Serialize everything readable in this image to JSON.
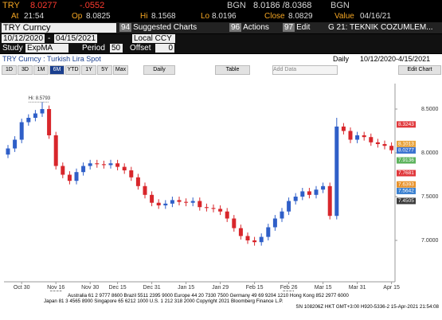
{
  "header": {
    "ticker": "TRY",
    "last": "8.0277",
    "change": "-.0552",
    "bid_src": "BGN",
    "bidask": "8.0186 /8.0368",
    "ask_src": "BGN",
    "at_label": "At",
    "at": "21:54",
    "op_label": "Op",
    "op": "8.0825",
    "hi_label": "Hi",
    "hi": "8.1568",
    "lo_label": "Lo",
    "lo": "8.0196",
    "close_label": "Close",
    "close": "8.0829",
    "value_label": "Value",
    "value": "04/16/21"
  },
  "toolbar": {
    "security": "TRY Curncy",
    "menus": [
      {
        "key": "94",
        "label": "Suggested Charts"
      },
      {
        "key": "96",
        "label": "Actions"
      },
      {
        "key": "97",
        "label": "Edit"
      }
    ],
    "page": "G 21: TEKNIK COZUMLEM...",
    "start": "10/12/2020",
    "end": "04/15/2021",
    "currency": "Local CCY",
    "study_label": "Study",
    "study": "ExpMA",
    "period_label": "Period",
    "period": "50",
    "offset_label": "Offset",
    "offset": "0"
  },
  "chart_header": {
    "title": "TRY Curncy : Turkish Lira Spot",
    "frequency": "Daily",
    "range": "10/12/2020-4/15/2021"
  },
  "ranges": [
    "1D",
    "3D",
    "1M",
    "6M",
    "YTD",
    "1Y",
    "5Y",
    "Max"
  ],
  "selected_range": "6M",
  "period_select": "Daily",
  "table_button": "Table",
  "add_data": "Add Data",
  "edit_chart": "Edit Chart",
  "chart_data": {
    "type": "candlestick",
    "categories": [
      null,
      null,
      "Oct 30",
      null,
      null,
      null,
      null,
      "Nov 16",
      null,
      null,
      null,
      null,
      "Nov 30",
      null,
      null,
      null,
      "Dec 15",
      null,
      null,
      null,
      null,
      "Dec 31",
      null,
      null,
      null,
      null,
      "Jan 15",
      null,
      null,
      null,
      null,
      "Jan 29",
      null,
      null,
      null,
      null,
      "Feb 15",
      null,
      null,
      null,
      null,
      "Feb 26",
      null,
      null,
      null,
      null,
      "Mar 15",
      null,
      null,
      null,
      null,
      "Mar 31",
      null,
      null,
      null,
      null,
      "Apr 15"
    ],
    "year_labels": [
      "2020",
      "2021"
    ],
    "open": [
      7.98,
      8.05,
      8.15,
      8.35,
      8.4,
      8.45,
      8.5,
      8.2,
      7.85,
      7.75,
      7.68,
      7.78,
      7.85,
      7.88,
      7.87,
      7.86,
      7.88,
      7.84,
      7.8,
      7.72,
      7.62,
      7.52,
      7.43,
      7.4,
      7.42,
      7.46,
      7.44,
      7.43,
      7.45,
      7.38,
      7.37,
      7.36,
      7.33,
      7.25,
      7.14,
      7.05,
      7.0,
      6.98,
      7.04,
      7.15,
      7.25,
      7.33,
      7.45,
      7.5,
      7.56,
      7.52,
      7.58,
      7.62,
      7.28,
      8.3,
      8.25,
      8.15,
      8.2,
      8.18,
      8.12,
      8.1,
      8.08
    ],
    "high": [
      8.09,
      8.19,
      8.39,
      8.44,
      8.49,
      8.58,
      8.54,
      8.24,
      7.89,
      7.79,
      7.82,
      7.89,
      7.92,
      7.92,
      7.91,
      7.92,
      7.92,
      7.88,
      7.84,
      7.76,
      7.66,
      7.56,
      7.47,
      7.46,
      7.5,
      7.5,
      7.48,
      7.49,
      7.49,
      7.42,
      7.41,
      7.4,
      7.37,
      7.29,
      7.18,
      7.09,
      7.04,
      7.08,
      7.19,
      7.29,
      7.37,
      7.49,
      7.54,
      7.6,
      7.6,
      7.62,
      7.66,
      7.66,
      8.4,
      8.34,
      8.29,
      8.24,
      8.24,
      8.22,
      8.16,
      8.14,
      8.12
    ],
    "low": [
      7.94,
      8.01,
      8.11,
      8.31,
      8.36,
      8.41,
      8.16,
      7.81,
      7.71,
      7.64,
      7.64,
      7.74,
      7.81,
      7.83,
      7.82,
      7.82,
      7.8,
      7.76,
      7.68,
      7.58,
      7.48,
      7.39,
      7.36,
      7.36,
      7.38,
      7.4,
      7.39,
      7.39,
      7.34,
      7.33,
      7.32,
      7.29,
      7.21,
      7.1,
      7.01,
      6.96,
      6.94,
      6.94,
      7.0,
      7.11,
      7.21,
      7.29,
      7.41,
      7.46,
      7.48,
      7.48,
      7.54,
      7.24,
      7.24,
      8.21,
      8.11,
      8.11,
      8.14,
      8.08,
      8.06,
      8.04,
      7.99
    ],
    "close": [
      8.05,
      8.15,
      8.35,
      8.4,
      8.45,
      8.5,
      8.2,
      7.85,
      7.75,
      7.68,
      7.78,
      7.85,
      7.88,
      7.87,
      7.86,
      7.88,
      7.84,
      7.8,
      7.72,
      7.62,
      7.52,
      7.43,
      7.4,
      7.42,
      7.46,
      7.44,
      7.43,
      7.45,
      7.38,
      7.37,
      7.36,
      7.33,
      7.25,
      7.14,
      7.05,
      7.0,
      6.98,
      7.04,
      7.15,
      7.25,
      7.33,
      7.45,
      7.5,
      7.56,
      7.52,
      7.58,
      7.62,
      7.28,
      8.3,
      8.25,
      8.15,
      8.2,
      8.18,
      8.12,
      8.1,
      8.08,
      8.03
    ],
    "up_color": "#2f5fc8",
    "down_color": "#d8262b",
    "high_annotation": {
      "label": "Hi: 8.5793",
      "value": 8.5793
    },
    "ylim": [
      6.6,
      8.7
    ],
    "yticks": [
      {
        "value": 7,
        "label": "7.0000"
      },
      {
        "value": 7.5,
        "label": "7.5000"
      },
      {
        "value": 8,
        "label": "8.0000"
      },
      {
        "value": 8.5,
        "label": "8.5000"
      }
    ],
    "grid": false,
    "price_labels": [
      {
        "value": 8.3243,
        "color": "#e0383c"
      },
      {
        "value": 8.1013,
        "color": "#e8a23a"
      },
      {
        "value": 8.0277,
        "color": "#3a72d0"
      },
      {
        "value": 7.9136,
        "color": "#5db35d"
      },
      {
        "value": 7.7681,
        "color": "#e0383c"
      },
      {
        "value": 7.6393,
        "color": "#e8922a"
      },
      {
        "value": 7.5642,
        "color": "#3a80d0"
      },
      {
        "value": 7.4505,
        "color": "#3c3c3c"
      }
    ]
  },
  "footer": [
    "Australia 61 2 9777 8600 Brazil 5511 2395 9000 Europe 44 20 7330 7500 Germany 49 69 9204 1210 Hong Kong 852 2977 6000",
    "Japan 81 3 4565 8900   Singapore 65 6212 1000   U.S. 1 212 318 2000   Copyright 2021 Bloomberg Finance L.P.",
    "SN 108206Z HKT GMT+3:00 H920-5336-2 15-Apr-2021 21:54:08"
  ]
}
